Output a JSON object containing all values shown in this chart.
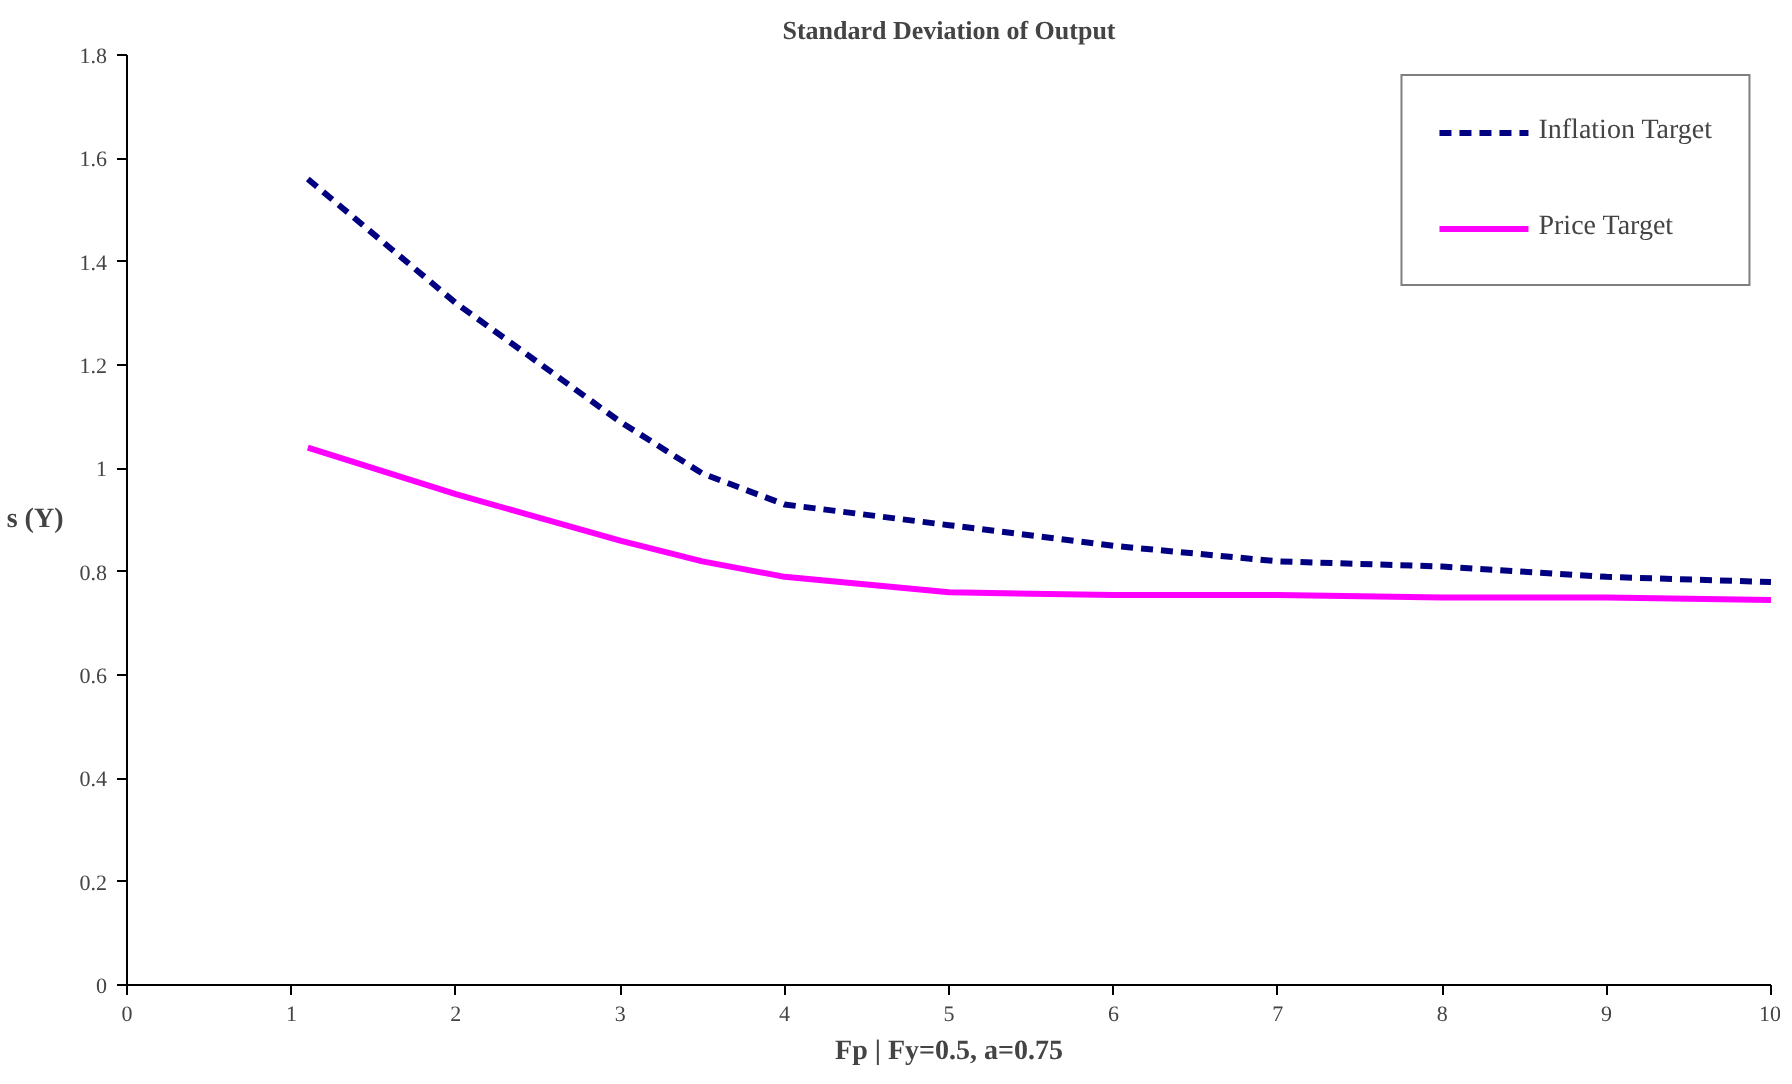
{
  "chart_data": {
    "type": "line",
    "title": "Standard Deviation of Output",
    "xlabel": "Fp | Fy=0.5, a=0.75",
    "ylabel": "s (Y)",
    "xlim": [
      0,
      10
    ],
    "xticks": [
      0,
      1,
      2,
      3,
      4,
      5,
      6,
      7,
      8,
      9,
      10
    ],
    "ylim": [
      0,
      1.8
    ],
    "yticks": [
      0,
      0.2,
      0.4,
      0.6,
      0.8,
      1,
      1.2,
      1.4,
      1.6,
      1.8
    ],
    "grid": false,
    "legend": "top right",
    "marker": "none",
    "x": [
      1.1,
      2,
      3,
      3.5,
      4,
      5,
      6,
      7,
      8,
      9,
      10
    ],
    "series": [
      {
        "name": "Inflation Target",
        "color": "#000080",
        "line_style": "dashed",
        "values": [
          1.56,
          1.32,
          1.09,
          0.99,
          0.93,
          0.89,
          0.85,
          0.82,
          0.81,
          0.79,
          0.78
        ]
      },
      {
        "name": "Price Target",
        "color": "#ff00ff",
        "line_style": "solid",
        "values": [
          1.04,
          0.95,
          0.86,
          0.82,
          0.79,
          0.76,
          0.755,
          0.755,
          0.75,
          0.75,
          0.745
        ]
      }
    ]
  }
}
